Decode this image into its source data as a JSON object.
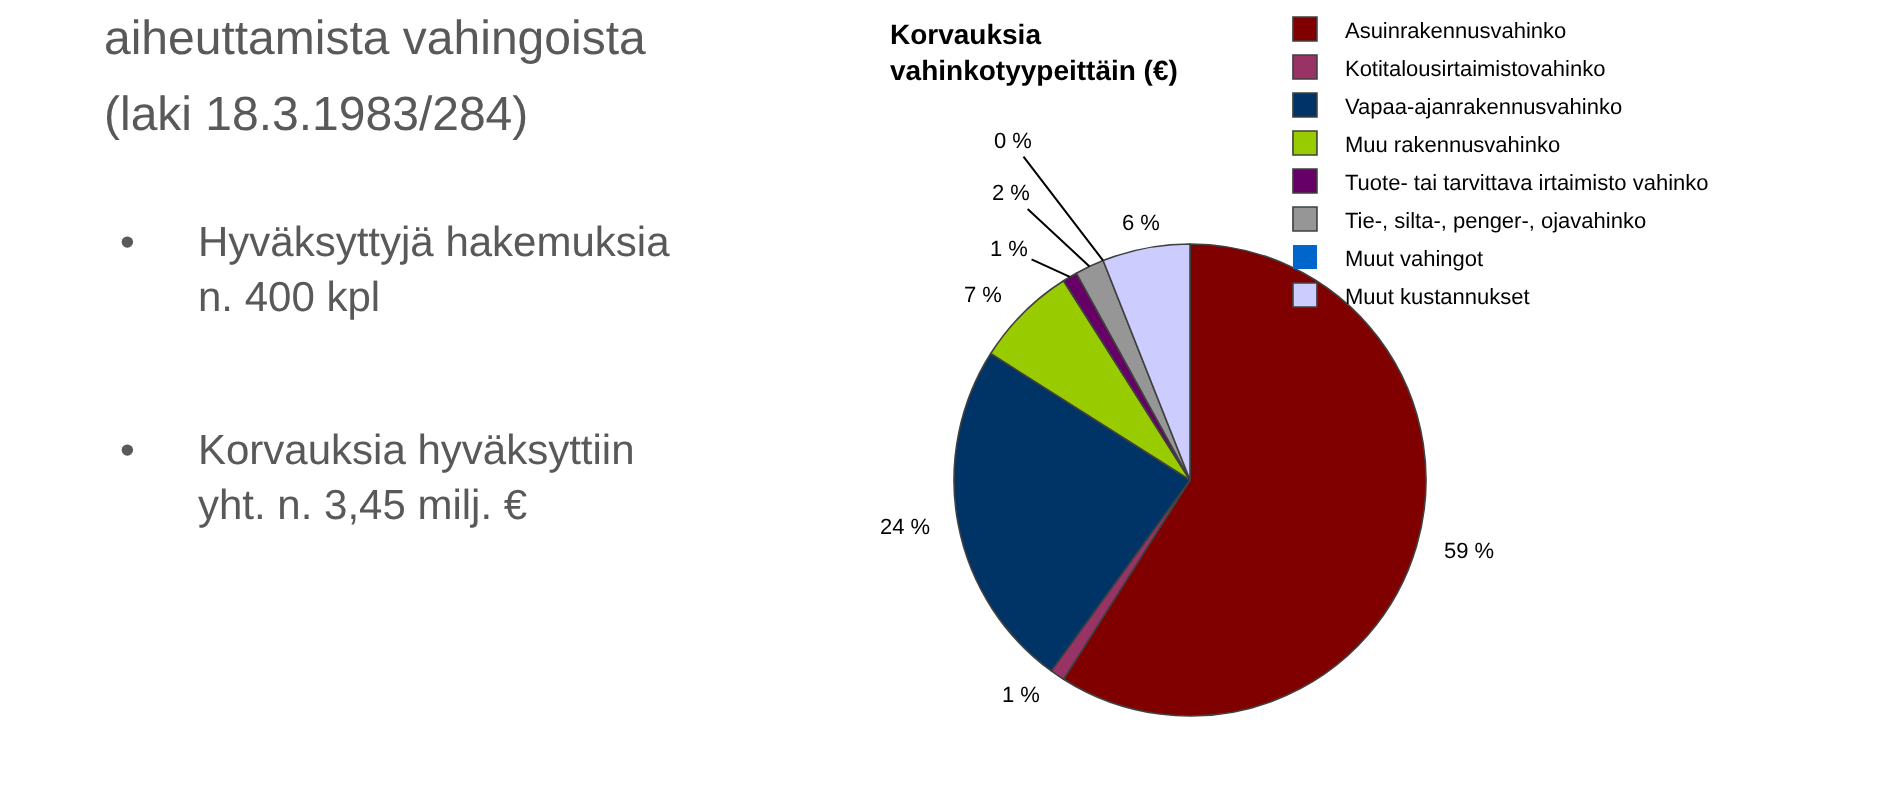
{
  "chart_data": {
    "type": "pie",
    "title": "Korvauksia\nvahinkotyypeittäin (€)",
    "categories": [
      "Asuinrakennusvahinko",
      "Kotitalousirtaimistovahinko",
      "Vapaa-ajanrakennusvahinko",
      "Muu rakennusvahinko",
      "Tuote- tai tarvittava irtaimisto vahinko",
      "Tie-, silta-, penger-, ojavahinko",
      "Muut vahingot",
      "Muut kustannukset"
    ],
    "values": [
      59,
      1,
      24,
      7,
      1,
      2,
      0,
      6
    ],
    "value_labels": [
      "59 %",
      "1 %",
      "24 %",
      "7 %",
      "1 %",
      "2 %",
      "0 %",
      "6 %"
    ],
    "colors": [
      "#800000",
      "#993366",
      "#003366",
      "#99cc00",
      "#660066",
      "#969696",
      "#0066cc",
      "#ccccff"
    ],
    "legend": "top right",
    "annotations": [
      "aiheuttamista vahingoista",
      "(laki 18.3.1983/284)",
      "•",
      "Hyväksyttyjä hakemuksia\nn. 400 kpl",
      "•",
      "Korvauksia hyväksyttiin\nyht. n. 3,45 milj. €"
    ]
  }
}
